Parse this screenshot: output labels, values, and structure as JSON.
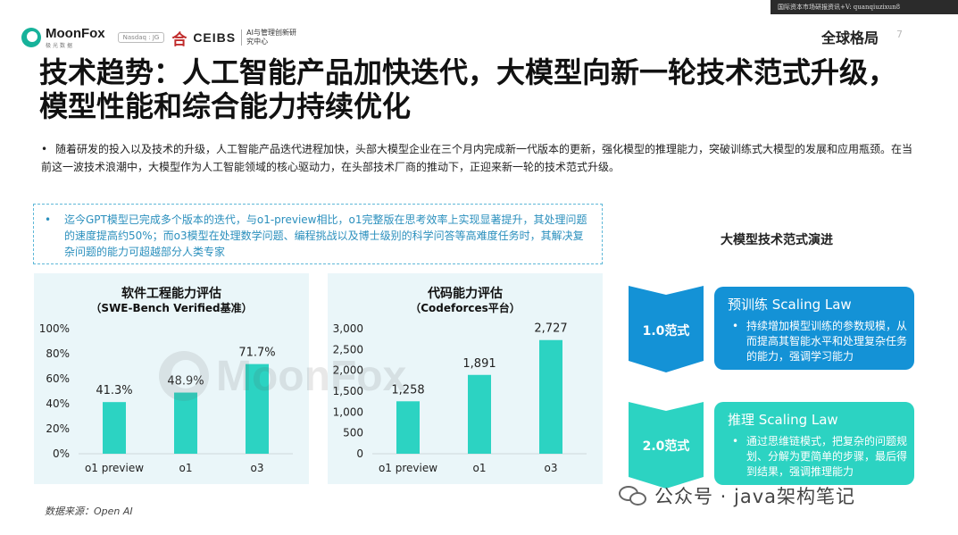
{
  "topbar": {
    "text": "国际资本市场研报资讯+V: quanqiuzixun8"
  },
  "header": {
    "brand": "MoonFox",
    "brand_sub": "极光数据",
    "nasdaq": "Nasdaq : JG",
    "partner": "CEIBS",
    "partner_sub": "AI与管理创新研究中心",
    "section": "全球格局",
    "page": "7"
  },
  "title": "技术趋势：人工智能产品加快迭代，大模型向新一轮技术范式升级，模型性能和综合能力持续优化",
  "bullet": {
    "dot": "•",
    "text": "随着研发的投入以及技术的升级，人工智能产品迭代进程加快，头部大模型企业在三个月内完成新一代版本的更新，强化模型的推理能力，突破训练式大模型的发展和应用瓶颈。在当前这一波技术浪潮中，大模型作为人工智能领域的核心驱动力，在头部技术厂商的推动下，正迎来新一轮的技术范式升级。"
  },
  "note": {
    "dot": "•",
    "text": "迄今GPT模型已完成多个版本的迭代，与o1-preview相比，o1完整版在思考效率上实现显著提升，其处理问题的速度提高约50%；而o3模型在处理数学问题、编程挑战以及博士级别的科学问答等高难度任务时，其解决复杂问题的能力可超越部分人类专家"
  },
  "chart_data": [
    {
      "type": "bar",
      "title": "软件工程能力评估",
      "subtitle": "（SWE-Bench Verified基准）",
      "categories": [
        "o1 preview",
        "o1",
        "o3"
      ],
      "values": [
        41.3,
        48.9,
        71.7
      ],
      "value_labels": [
        "41.3%",
        "48.9%",
        "71.7%"
      ],
      "yticks": [
        "0%",
        "20%",
        "40%",
        "60%",
        "80%",
        "100%"
      ],
      "ylim": [
        0,
        100
      ],
      "grid": false,
      "color": "#2cd3c2"
    },
    {
      "type": "bar",
      "title": "代码能力评估",
      "subtitle": "（Codeforces平台）",
      "categories": [
        "o1 preview",
        "o1",
        "o3"
      ],
      "values": [
        1258,
        1891,
        2727
      ],
      "value_labels": [
        "1,258",
        "1,891",
        "2,727"
      ],
      "yticks": [
        "0",
        "500",
        "1,000",
        "1,500",
        "2,000",
        "2,500",
        "3,000"
      ],
      "ylim": [
        0,
        3000
      ],
      "grid": false,
      "color": "#2cd3c2"
    }
  ],
  "watermark": "MoonFox",
  "source": "数据来源：Open AI",
  "right": {
    "title": "大模型技术范式演进",
    "paradigms": [
      {
        "label": "1.0范式",
        "card_title": "预训练 Scaling Law",
        "item": "持续增加模型训练的参数规模，从而提高其智能水平和处理复杂任务的能力，强调学习能力",
        "color": "#1492d6"
      },
      {
        "label": "2.0范式",
        "card_title": "推理 Scaling Law",
        "item": "通过思维链模式，把复杂的问题规划、分解为更简单的步骤，最后得到结果，强调推理能力",
        "color": "#2cd3c2"
      }
    ],
    "bullet": "•"
  },
  "footer": {
    "wechat": "公众号 · java架构笔记"
  }
}
